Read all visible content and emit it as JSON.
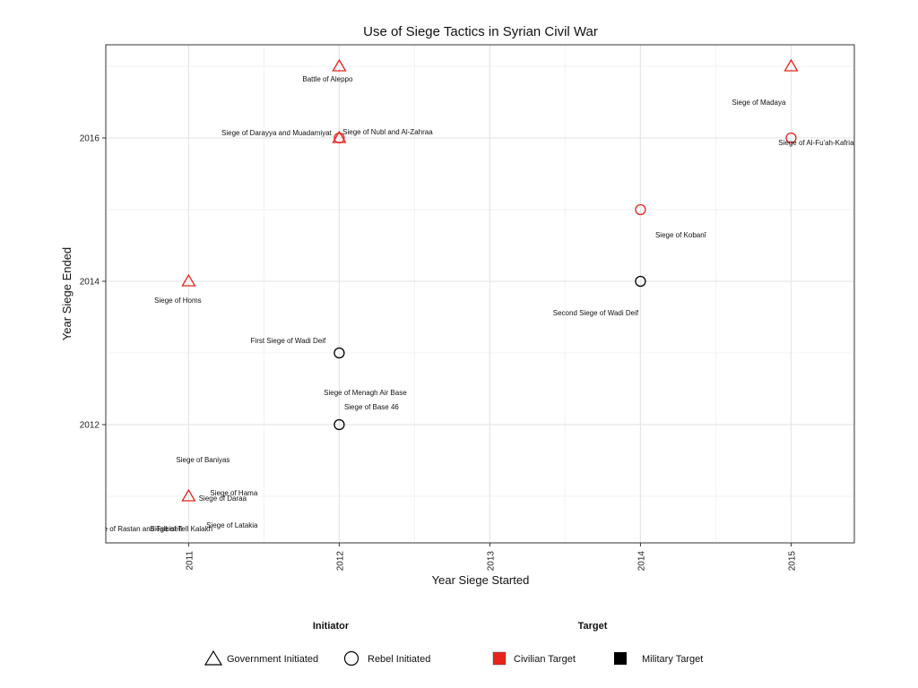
{
  "chart_data": {
    "type": "scatter",
    "title": "Use of Siege Tactics in Syrian Civil War",
    "xlabel": "Year Siege Started",
    "ylabel": "Year Siege Ended",
    "xlim": [
      2010.45,
      2015.42
    ],
    "ylim": [
      2010.35,
      2017.3
    ],
    "x_ticks": [
      2011,
      2012,
      2013,
      2014,
      2015
    ],
    "y_ticks": [
      2012,
      2014,
      2016
    ],
    "grid": true,
    "colors": {
      "civilian": "#e8231b",
      "military": "#000000"
    },
    "legend": {
      "position": "bottom",
      "initiator_title": "Initiator",
      "target_title": "Target",
      "initiator_items": [
        {
          "label": "Government Initiated",
          "shape": "triangle"
        },
        {
          "label": "Rebel Initiated",
          "shape": "circle"
        }
      ],
      "target_items": [
        {
          "label": "Civilian Target",
          "target": "civilian"
        },
        {
          "label": "Military Target",
          "target": "military"
        }
      ]
    },
    "points": [
      {
        "x": 2012,
        "y": 2017,
        "initiator": "government",
        "target": "civilian",
        "label": "Battle of Aleppo"
      },
      {
        "x": 2015,
        "y": 2017,
        "initiator": "government",
        "target": "civilian",
        "label": "Siege of Madaya"
      },
      {
        "x": 2012,
        "y": 2016,
        "initiator": "government",
        "target": "civilian",
        "label": "Siege of Darayya and Muadamiyat"
      },
      {
        "x": 2012,
        "y": 2016,
        "initiator": "rebel",
        "target": "civilian",
        "label": "Siege of Nubl and Al-Zahraa"
      },
      {
        "x": 2015,
        "y": 2016,
        "initiator": "rebel",
        "target": "civilian",
        "label": "Siege of Al-Fu'ah-Kafria"
      },
      {
        "x": 2014,
        "y": 2015,
        "initiator": "rebel",
        "target": "civilian",
        "label": "Siege of Kobanî"
      },
      {
        "x": 2011,
        "y": 2014,
        "initiator": "government",
        "target": "civilian",
        "label": "Siege of Homs"
      },
      {
        "x": 2014,
        "y": 2014,
        "initiator": "rebel",
        "target": "military",
        "label": "Second Siege of Wadi Deif"
      },
      {
        "x": 2012,
        "y": 2013,
        "initiator": "rebel",
        "target": "military",
        "label": "First Siege of Wadi Deif"
      },
      {
        "x": 2012,
        "y": 2012,
        "initiator": "rebel",
        "target": "military",
        "label": "Siege of Base 46"
      },
      {
        "x": 2012,
        "y": 2012.5,
        "initiator": "rebel",
        "target": "military",
        "label": "Siege of Menagh Air Base",
        "label_only": true
      },
      {
        "x": 2011,
        "y": 2011,
        "initiator": "government",
        "target": "civilian",
        "label": "Siege of Daraa"
      },
      {
        "x": 2011,
        "y": 2011.3,
        "initiator": "government",
        "target": "civilian",
        "label": "Siege of Baniyas",
        "label_only": true
      },
      {
        "x": 2011.3,
        "y": 2011.05,
        "initiator": "government",
        "target": "civilian",
        "label": "Siege of Hama",
        "label_only": true
      },
      {
        "x": 2011.3,
        "y": 2010.6,
        "initiator": "government",
        "target": "civilian",
        "label": "Siege of Latakia",
        "label_only": true
      },
      {
        "x": 2010.65,
        "y": 2010.55,
        "initiator": "government",
        "target": "civilian",
        "label": "Siege of Rastan and Talbiseh",
        "label_only": true
      },
      {
        "x": 2010.95,
        "y": 2010.55,
        "initiator": "government",
        "target": "civilian",
        "label": "Siege of Tell Kalakh",
        "label_only": true
      }
    ]
  }
}
